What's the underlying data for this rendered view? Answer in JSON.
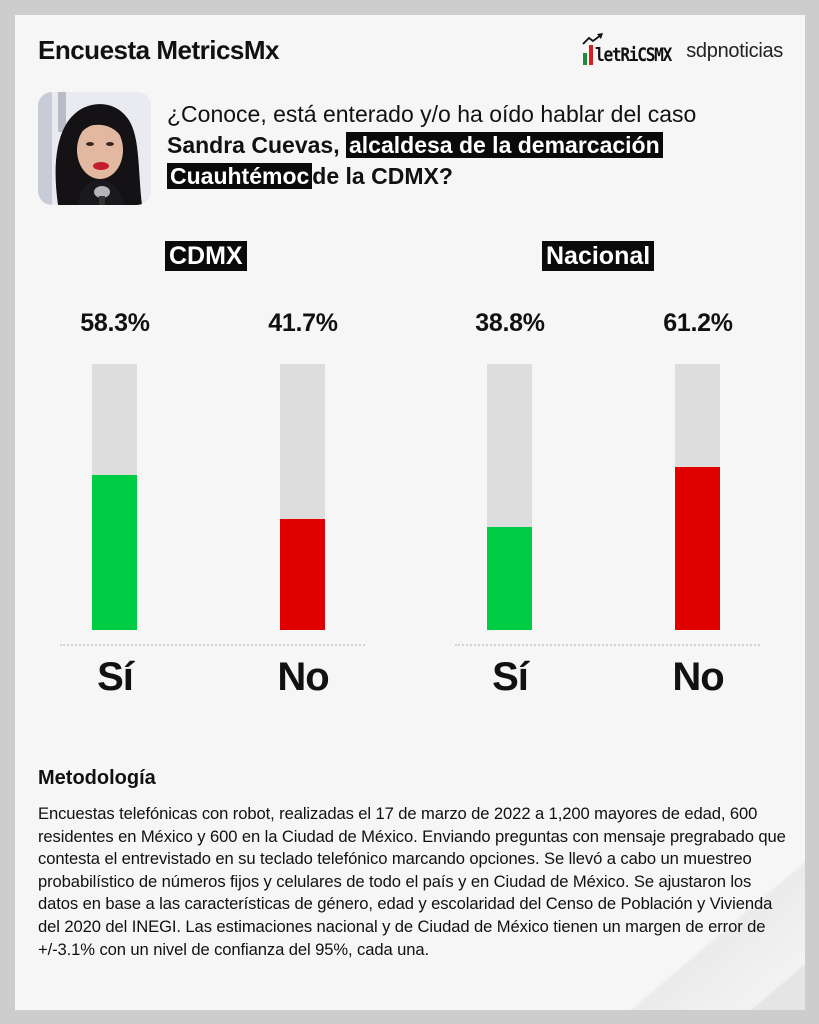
{
  "header": {
    "title": "Encuesta MetricsMx",
    "logos": [
      {
        "name": "metricsmx-logo",
        "text": "letRiCSMX"
      },
      {
        "name": "sdpnoticias-logo",
        "text": "sdpnoticias"
      }
    ]
  },
  "question": {
    "line_part1": "¿Conoce, está enterado y/o ha oído hablar del caso",
    "bold_name": "Sandra Cuevas,",
    "highlight1": "alcaldesa de la demarcación",
    "highlight2": "Cuauhtémoc",
    "tail": "de la CDMX?"
  },
  "colors": {
    "yes": "#00cc44",
    "no": "#e00000",
    "track": "#dddddd",
    "label_bg": "#0a0a0a",
    "card_bg": "#f6f6f6",
    "page_bg": "#cdcdcd"
  },
  "panels": [
    {
      "label": "CDMX",
      "bars": [
        {
          "category": "Sí",
          "value": 58.3,
          "value_label": "58.3%"
        },
        {
          "category": "No",
          "value": 41.7,
          "value_label": "41.7%"
        }
      ]
    },
    {
      "label": "Nacional",
      "bars": [
        {
          "category": "Sí",
          "value": 38.8,
          "value_label": "38.8%"
        },
        {
          "category": "No",
          "value": 61.2,
          "value_label": "61.2%"
        }
      ]
    }
  ],
  "chart_data": [
    {
      "type": "bar",
      "title": "CDMX",
      "categories": [
        "Sí",
        "No"
      ],
      "values": [
        58.3,
        41.7
      ],
      "value_labels": [
        "58.3%",
        "41.7%"
      ],
      "colors": [
        "#00cc44",
        "#e00000"
      ],
      "ylim": [
        0,
        100
      ],
      "xlabel": "",
      "ylabel": "",
      "grid": false,
      "legend": "none"
    },
    {
      "type": "bar",
      "title": "Nacional",
      "categories": [
        "Sí",
        "No"
      ],
      "values": [
        38.8,
        61.2
      ],
      "value_labels": [
        "38.8%",
        "61.2%"
      ],
      "colors": [
        "#00cc44",
        "#e00000"
      ],
      "ylim": [
        0,
        100
      ],
      "xlabel": "",
      "ylabel": "",
      "grid": false,
      "legend": "none"
    }
  ],
  "methodology": {
    "title": "Metodología",
    "body": "Encuestas telefónicas con robot, realizadas el 17 de marzo de 2022 a 1,200 mayores de edad, 600 residentes en México y 600 en la Ciudad de México. Enviando preguntas con mensaje pregrabado que contesta el entrevistado en su teclado telefónico marcando opciones. Se llevó a cabo un muestreo probabilístico de números fijos y celulares de todo el país y en Ciudad de México. Se ajustaron los datos en base a las características de género, edad y escolaridad del Censo de Población y Vivienda del 2020 del INEGI. Las estimaciones nacional y de Ciudad de México tienen un margen de error de +/-3.1% con un nivel de confianza del 95%, cada una."
  }
}
